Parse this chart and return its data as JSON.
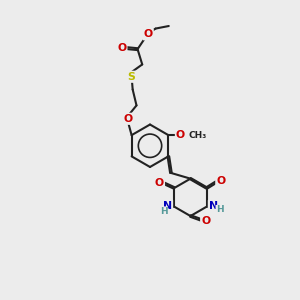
{
  "bg_color": "#ececec",
  "bond_color": "#222222",
  "bond_lw": 1.5,
  "dbo": 0.055,
  "atom_colors": {
    "O": "#cc0000",
    "S": "#bbbb00",
    "N": "#0000bb",
    "H": "#559999",
    "C": "#222222"
  },
  "fs": 7.8,
  "fss": 6.5,
  "xlim": [
    0,
    10
  ],
  "ylim": [
    0,
    14
  ]
}
